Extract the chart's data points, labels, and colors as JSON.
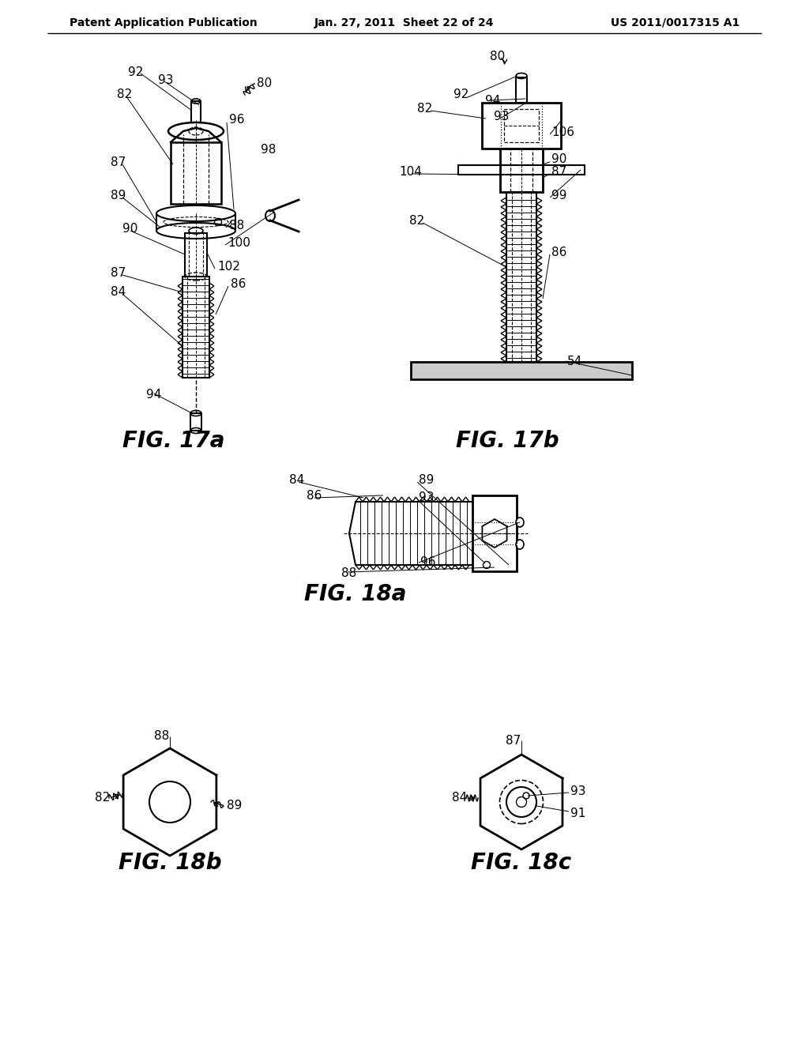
{
  "background_color": "#ffffff",
  "header_left": "Patent Application Publication",
  "header_center": "Jan. 27, 2011  Sheet 22 of 24",
  "header_right": "US 2011/0017315 A1"
}
